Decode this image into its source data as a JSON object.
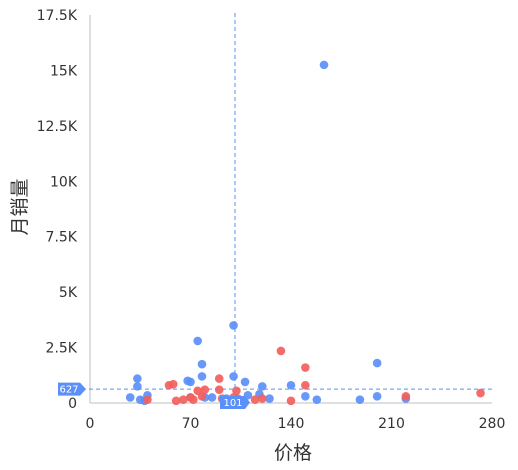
{
  "chart_data": {
    "type": "scatter",
    "xlabel": "价格",
    "ylabel": "月销量",
    "xlim": [
      0,
      280
    ],
    "ylim": [
      0,
      17500
    ],
    "x_ticks": [
      0,
      70,
      140,
      210,
      280
    ],
    "x_tick_labels": [
      "0",
      "70",
      "140",
      "210",
      "280"
    ],
    "y_ticks": [
      0,
      2500,
      5000,
      7500,
      10000,
      12500,
      15000,
      17500
    ],
    "y_tick_labels": [
      "0",
      "2.5K",
      "5K",
      "7.5K",
      "10K",
      "12.5K",
      "15K",
      "17.5K"
    ],
    "grid": false,
    "reference_lines": {
      "x": 101,
      "x_label": "101",
      "y": 627,
      "y_label": "627",
      "color": "#5B8FF9"
    },
    "colors": {
      "blue": "#5B8FF9",
      "red": "#F25F5C"
    },
    "series": [
      {
        "color": "#5B8FF9",
        "points": [
          [
            28,
            250
          ],
          [
            33,
            750
          ],
          [
            33,
            1100
          ],
          [
            35,
            150
          ],
          [
            38,
            100
          ],
          [
            40,
            350
          ],
          [
            68,
            1000
          ],
          [
            70,
            950
          ],
          [
            70,
            250
          ],
          [
            75,
            2800
          ],
          [
            78,
            1750
          ],
          [
            78,
            1200
          ],
          [
            80,
            250
          ],
          [
            85,
            250
          ],
          [
            95,
            200
          ],
          [
            100,
            3500
          ],
          [
            100,
            1200
          ],
          [
            103,
            200
          ],
          [
            108,
            950
          ],
          [
            110,
            350
          ],
          [
            118,
            400
          ],
          [
            120,
            750
          ],
          [
            125,
            200
          ],
          [
            140,
            800
          ],
          [
            150,
            300
          ],
          [
            158,
            150
          ],
          [
            163,
            15250
          ],
          [
            188,
            150
          ],
          [
            200,
            1800
          ],
          [
            200,
            300
          ],
          [
            220,
            200
          ]
        ]
      },
      {
        "color": "#F25F5C",
        "points": [
          [
            40,
            150
          ],
          [
            55,
            800
          ],
          [
            58,
            850
          ],
          [
            60,
            100
          ],
          [
            65,
            150
          ],
          [
            70,
            250
          ],
          [
            72,
            150
          ],
          [
            75,
            550
          ],
          [
            78,
            300
          ],
          [
            80,
            600
          ],
          [
            90,
            1100
          ],
          [
            90,
            600
          ],
          [
            92,
            200
          ],
          [
            100,
            250
          ],
          [
            102,
            550
          ],
          [
            115,
            150
          ],
          [
            120,
            200
          ],
          [
            133,
            2350
          ],
          [
            140,
            100
          ],
          [
            150,
            1600
          ],
          [
            150,
            800
          ],
          [
            220,
            300
          ],
          [
            272,
            450
          ]
        ]
      }
    ]
  }
}
